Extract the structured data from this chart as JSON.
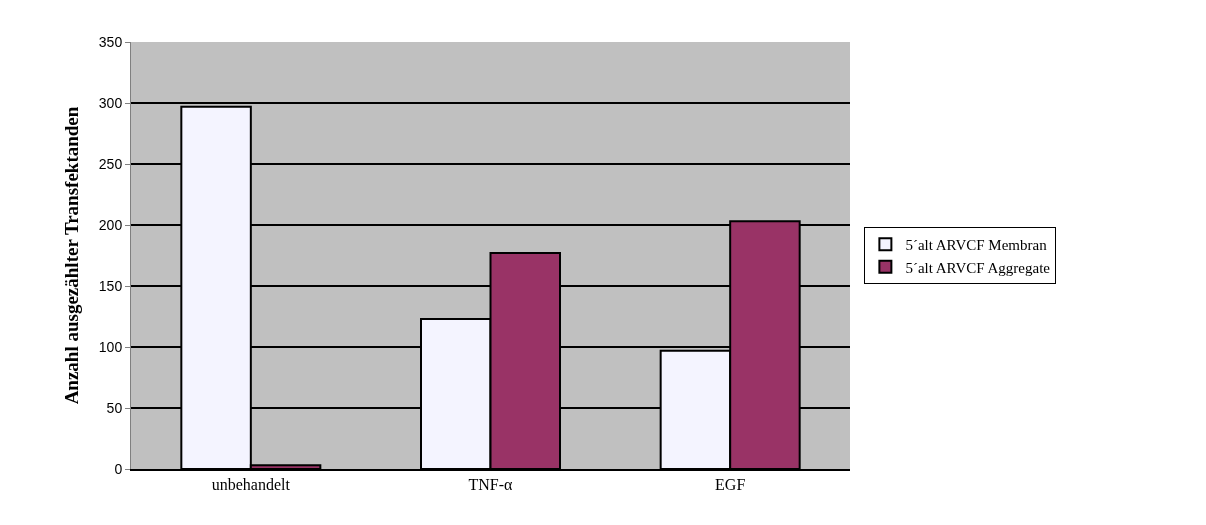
{
  "chart_data": {
    "type": "bar",
    "ylabel": "Anzahl ausgezählter Transfektanden",
    "categories": [
      "unbehandelt",
      "TNF-α",
      "EGF"
    ],
    "series": [
      {
        "name": "5´alt ARVCF Membran",
        "color": "#f4f4ff",
        "values": [
          297,
          123,
          97
        ]
      },
      {
        "name": "5´alt ARVCF Aggregate",
        "color": "#993366",
        "values": [
          3,
          177,
          203
        ]
      }
    ],
    "ylim": [
      0,
      350
    ],
    "yticks": [
      0,
      50,
      100,
      150,
      200,
      250,
      300,
      350
    ],
    "grid": "y",
    "legend": "right"
  }
}
